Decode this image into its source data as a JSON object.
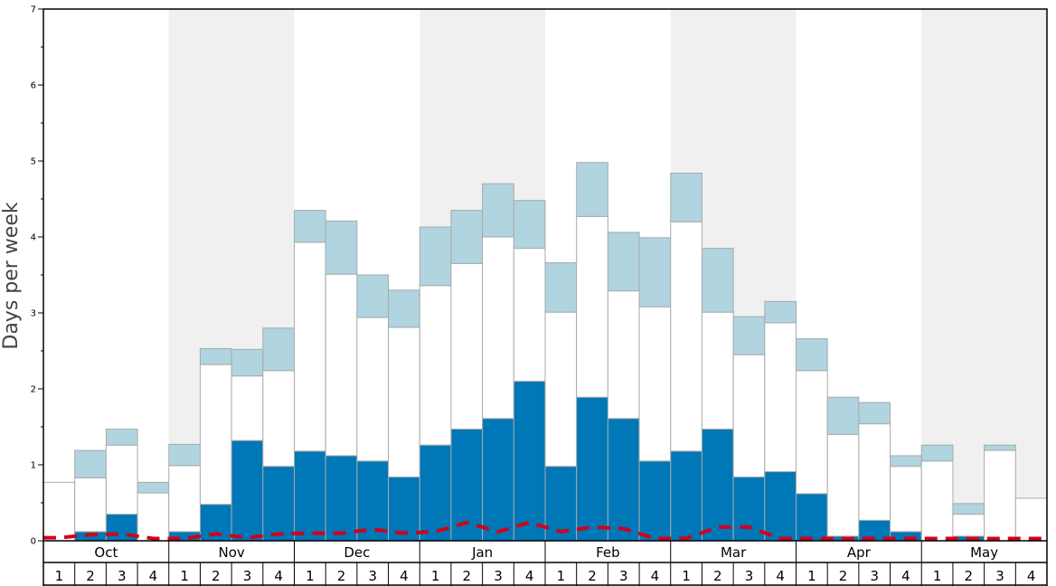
{
  "chart_data": {
    "type": "bar",
    "stacked": true,
    "ylabel": "Days per week",
    "ylim": [
      0,
      7
    ],
    "yticks": [
      "0",
      "1",
      "2",
      "3",
      "4",
      "5",
      "6",
      "7"
    ],
    "months": [
      "Oct",
      "Nov",
      "Dec",
      "Jan",
      "Feb",
      "Mar",
      "Apr",
      "May"
    ],
    "weeks": [
      "1",
      "2",
      "3",
      "4"
    ],
    "grid": false,
    "colors": {
      "bottom": "#0077b6",
      "middle": "#ffffff",
      "top": "#b0d4e0",
      "line": "#d0021b",
      "shade": "#f0f0f0",
      "bar_edge": "#aaaaaa"
    },
    "series": [
      {
        "values": [
          0,
          0.12,
          0.35,
          0,
          0.12,
          0.48,
          1.32,
          0.98,
          1.18,
          1.12,
          1.05,
          0.84,
          1.26,
          1.47,
          1.61,
          2.1,
          0.98,
          1.89,
          1.61,
          1.05,
          1.18,
          1.47,
          0.84,
          0.91,
          0.62,
          0.06,
          0.27,
          0.12,
          0,
          0.06,
          0,
          0
        ]
      },
      {
        "values": [
          0.77,
          0.71,
          0.91,
          0.63,
          0.87,
          1.84,
          0.85,
          1.26,
          2.75,
          2.39,
          1.89,
          1.97,
          2.1,
          2.18,
          2.39,
          1.75,
          2.03,
          2.38,
          1.68,
          2.03,
          3.02,
          1.54,
          1.61,
          1.96,
          1.62,
          1.34,
          1.27,
          0.86,
          1.05,
          0.29,
          1.19,
          0.56
        ]
      },
      {
        "values": [
          0,
          0.36,
          0.21,
          0.14,
          0.28,
          0.21,
          0.35,
          0.56,
          0.42,
          0.7,
          0.56,
          0.49,
          0.77,
          0.7,
          0.7,
          0.63,
          0.65,
          0.71,
          0.77,
          0.91,
          0.64,
          0.84,
          0.5,
          0.28,
          0.42,
          0.49,
          0.28,
          0.14,
          0.21,
          0.14,
          0.07,
          0
        ]
      },
      {
        "style": "dashed-line",
        "values": [
          0.04,
          0.08,
          0.09,
          0.03,
          0.03,
          0.09,
          0.04,
          0.09,
          0.1,
          0.1,
          0.15,
          0.1,
          0.12,
          0.24,
          0.12,
          0.24,
          0.12,
          0.18,
          0.16,
          0.03,
          0.03,
          0.18,
          0.18,
          0.03,
          0.03,
          0.03,
          0.03,
          0.03,
          0.03,
          0.03,
          0.03,
          0.03
        ]
      }
    ]
  }
}
